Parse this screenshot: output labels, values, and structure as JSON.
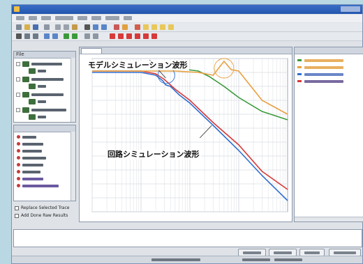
{
  "window": {
    "file_panel_label": "File"
  },
  "options": {
    "replace_label": "Replace Selected Trace",
    "add_label": "Add Done Raw Results"
  },
  "callouts": {
    "model": "モデルシミュレーション波形",
    "circuit": "回路シミュレーション波形"
  },
  "colors": {
    "model_magnitude": "#2f6fd0",
    "model_phase": "#3a9a3a",
    "circuit_magnitude": "#d63a3a",
    "circuit_phase": "#e8a040",
    "grid": "#d9dde3",
    "window_chrome": "#2355ad"
  },
  "chart_data": {
    "type": "line",
    "xscale": "log",
    "xlim": [
      10,
      100000
    ],
    "ylim": [
      -100,
      10
    ],
    "grid": true,
    "series": [
      {
        "color": "#2f6fd0",
        "x": [
          10,
          30,
          100,
          200,
          280,
          320,
          400,
          600,
          1000,
          3000,
          10000,
          30000,
          100000
        ],
        "y": [
          0,
          0,
          0,
          -2,
          -6,
          -9,
          -10,
          -16,
          -22,
          -38,
          -56,
          -74,
          -92
        ]
      },
      {
        "color": "#d63a3a",
        "x": [
          10,
          30,
          100,
          200,
          300,
          500,
          1000,
          3000,
          10000,
          30000,
          100000
        ],
        "y": [
          1,
          1,
          1,
          -1,
          -5,
          -12,
          -20,
          -36,
          -52,
          -71,
          -84
        ]
      },
      {
        "color": "#3a9a3a",
        "x": [
          10,
          100,
          300,
          900,
          1500,
          2500,
          5000,
          10000,
          30000,
          100000
        ],
        "y": [
          2,
          2,
          2,
          2,
          1,
          -3,
          -10,
          -18,
          -28,
          -34
        ]
      },
      {
        "color": "#e8a040",
        "x": [
          10,
          100,
          500,
          1500,
          3000,
          5000,
          7000,
          10000,
          30000,
          100000
        ],
        "y": [
          1,
          1,
          1,
          0,
          -2,
          8,
          2,
          1,
          -20,
          -30
        ]
      }
    ]
  }
}
